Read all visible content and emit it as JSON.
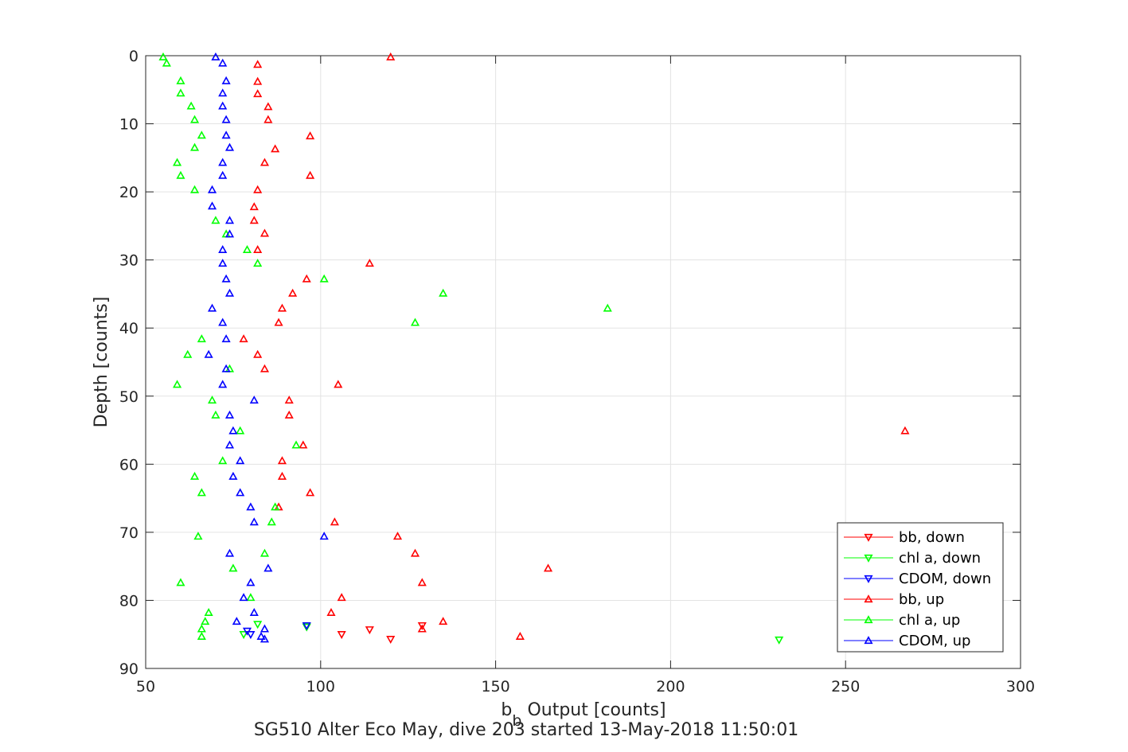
{
  "chart_data": {
    "type": "scatter",
    "title": "SG510 Alter Eco May, dive 203 started 13-May-2018 11:50:01",
    "xlabel_main": "b",
    "xlabel_sub": "b",
    "xlabel_rest": " Output [counts]",
    "ylabel": "Depth [counts]",
    "xlim": [
      50,
      300
    ],
    "ylim": [
      0,
      90
    ],
    "y_reversed": true,
    "grid": true,
    "legend_position": "bottom-right",
    "x_ticks": [
      "50",
      "100",
      "150",
      "200",
      "250",
      "300"
    ],
    "y_ticks": [
      "0",
      "10",
      "20",
      "30",
      "40",
      "50",
      "60",
      "70",
      "80",
      "90"
    ],
    "series": [
      {
        "name": "bb, down",
        "color": "#ff0000",
        "marker": "triangle-down",
        "points": [
          [
            129,
            83.7
          ],
          [
            114,
            84.3
          ],
          [
            106,
            85.0
          ],
          [
            120,
            85.7
          ]
        ]
      },
      {
        "name": "chl a, down",
        "color": "#00ff00",
        "marker": "triangle-down",
        "points": [
          [
            96,
            83.9
          ],
          [
            82,
            83.5
          ],
          [
            78,
            85.0
          ],
          [
            231,
            85.8
          ]
        ]
      },
      {
        "name": "CDOM, down",
        "color": "#0000ff",
        "marker": "triangle-down",
        "points": [
          [
            96,
            83.7
          ],
          [
            79,
            84.5
          ],
          [
            80,
            85.0
          ]
        ]
      },
      {
        "name": "bb, up",
        "color": "#ff0000",
        "marker": "triangle-up",
        "points": [
          [
            120,
            0.2
          ],
          [
            82,
            1.3
          ],
          [
            82,
            3.8
          ],
          [
            82,
            5.6
          ],
          [
            85,
            7.5
          ],
          [
            85,
            9.4
          ],
          [
            97,
            11.8
          ],
          [
            87,
            13.7
          ],
          [
            84,
            15.7
          ],
          [
            97,
            17.6
          ],
          [
            82,
            19.7
          ],
          [
            81,
            22.2
          ],
          [
            81,
            24.2
          ],
          [
            84,
            26.1
          ],
          [
            82,
            28.5
          ],
          [
            114,
            30.5
          ],
          [
            96,
            32.8
          ],
          [
            92,
            34.9
          ],
          [
            89,
            37.1
          ],
          [
            88,
            39.2
          ],
          [
            78,
            41.6
          ],
          [
            82,
            43.9
          ],
          [
            84,
            46.0
          ],
          [
            105,
            48.3
          ],
          [
            91,
            50.6
          ],
          [
            91,
            52.8
          ],
          [
            267,
            55.1
          ],
          [
            95,
            57.2
          ],
          [
            89,
            59.5
          ],
          [
            89,
            61.8
          ],
          [
            97,
            64.2
          ],
          [
            88,
            66.3
          ],
          [
            104,
            68.5
          ],
          [
            122,
            70.6
          ],
          [
            127,
            73.1
          ],
          [
            165,
            75.3
          ],
          [
            129,
            77.4
          ],
          [
            106,
            79.6
          ],
          [
            103,
            81.8
          ],
          [
            135,
            83.1
          ],
          [
            129,
            84.2
          ],
          [
            157,
            85.3
          ]
        ]
      },
      {
        "name": "chl a, up",
        "color": "#00ff00",
        "marker": "triangle-up",
        "points": [
          [
            55,
            0.2
          ],
          [
            56,
            1.1
          ],
          [
            60,
            3.7
          ],
          [
            60,
            5.5
          ],
          [
            63,
            7.4
          ],
          [
            64,
            9.4
          ],
          [
            66,
            11.7
          ],
          [
            64,
            13.5
          ],
          [
            59,
            15.7
          ],
          [
            60,
            17.6
          ],
          [
            64,
            19.7
          ],
          [
            70,
            24.2
          ],
          [
            73,
            26.2
          ],
          [
            79,
            28.5
          ],
          [
            82,
            30.5
          ],
          [
            101,
            32.8
          ],
          [
            135,
            34.9
          ],
          [
            182,
            37.1
          ],
          [
            127,
            39.2
          ],
          [
            66,
            41.6
          ],
          [
            62,
            43.9
          ],
          [
            74,
            46.0
          ],
          [
            59,
            48.3
          ],
          [
            69,
            50.6
          ],
          [
            70,
            52.8
          ],
          [
            77,
            55.1
          ],
          [
            93,
            57.2
          ],
          [
            72,
            59.5
          ],
          [
            64,
            61.8
          ],
          [
            66,
            64.2
          ],
          [
            87,
            66.3
          ],
          [
            86,
            68.5
          ],
          [
            65,
            70.6
          ],
          [
            84,
            73.1
          ],
          [
            75,
            75.3
          ],
          [
            60,
            77.4
          ],
          [
            80,
            79.6
          ],
          [
            68,
            81.8
          ],
          [
            67,
            83.1
          ],
          [
            66,
            84.2
          ],
          [
            66,
            85.3
          ]
        ]
      },
      {
        "name": "CDOM, up",
        "color": "#0000ff",
        "marker": "triangle-up",
        "points": [
          [
            70,
            0.2
          ],
          [
            72,
            1.1
          ],
          [
            73,
            3.7
          ],
          [
            72,
            5.5
          ],
          [
            72,
            7.4
          ],
          [
            73,
            9.4
          ],
          [
            73,
            11.7
          ],
          [
            74,
            13.5
          ],
          [
            72,
            15.7
          ],
          [
            72,
            17.6
          ],
          [
            69,
            19.7
          ],
          [
            69,
            22.1
          ],
          [
            74,
            24.2
          ],
          [
            74,
            26.2
          ],
          [
            72,
            28.5
          ],
          [
            72,
            30.5
          ],
          [
            73,
            32.8
          ],
          [
            74,
            34.9
          ],
          [
            69,
            37.1
          ],
          [
            72,
            39.2
          ],
          [
            73,
            41.6
          ],
          [
            68,
            43.9
          ],
          [
            73,
            46.0
          ],
          [
            72,
            48.3
          ],
          [
            81,
            50.6
          ],
          [
            74,
            52.8
          ],
          [
            75,
            55.1
          ],
          [
            74,
            57.2
          ],
          [
            77,
            59.5
          ],
          [
            75,
            61.8
          ],
          [
            77,
            64.2
          ],
          [
            80,
            66.3
          ],
          [
            81,
            68.5
          ],
          [
            101,
            70.6
          ],
          [
            74,
            73.1
          ],
          [
            85,
            75.3
          ],
          [
            80,
            77.4
          ],
          [
            78,
            79.6
          ],
          [
            81,
            81.8
          ],
          [
            76,
            83.1
          ],
          [
            84,
            84.2
          ],
          [
            83,
            85.3
          ],
          [
            84,
            85.7
          ]
        ]
      }
    ]
  }
}
